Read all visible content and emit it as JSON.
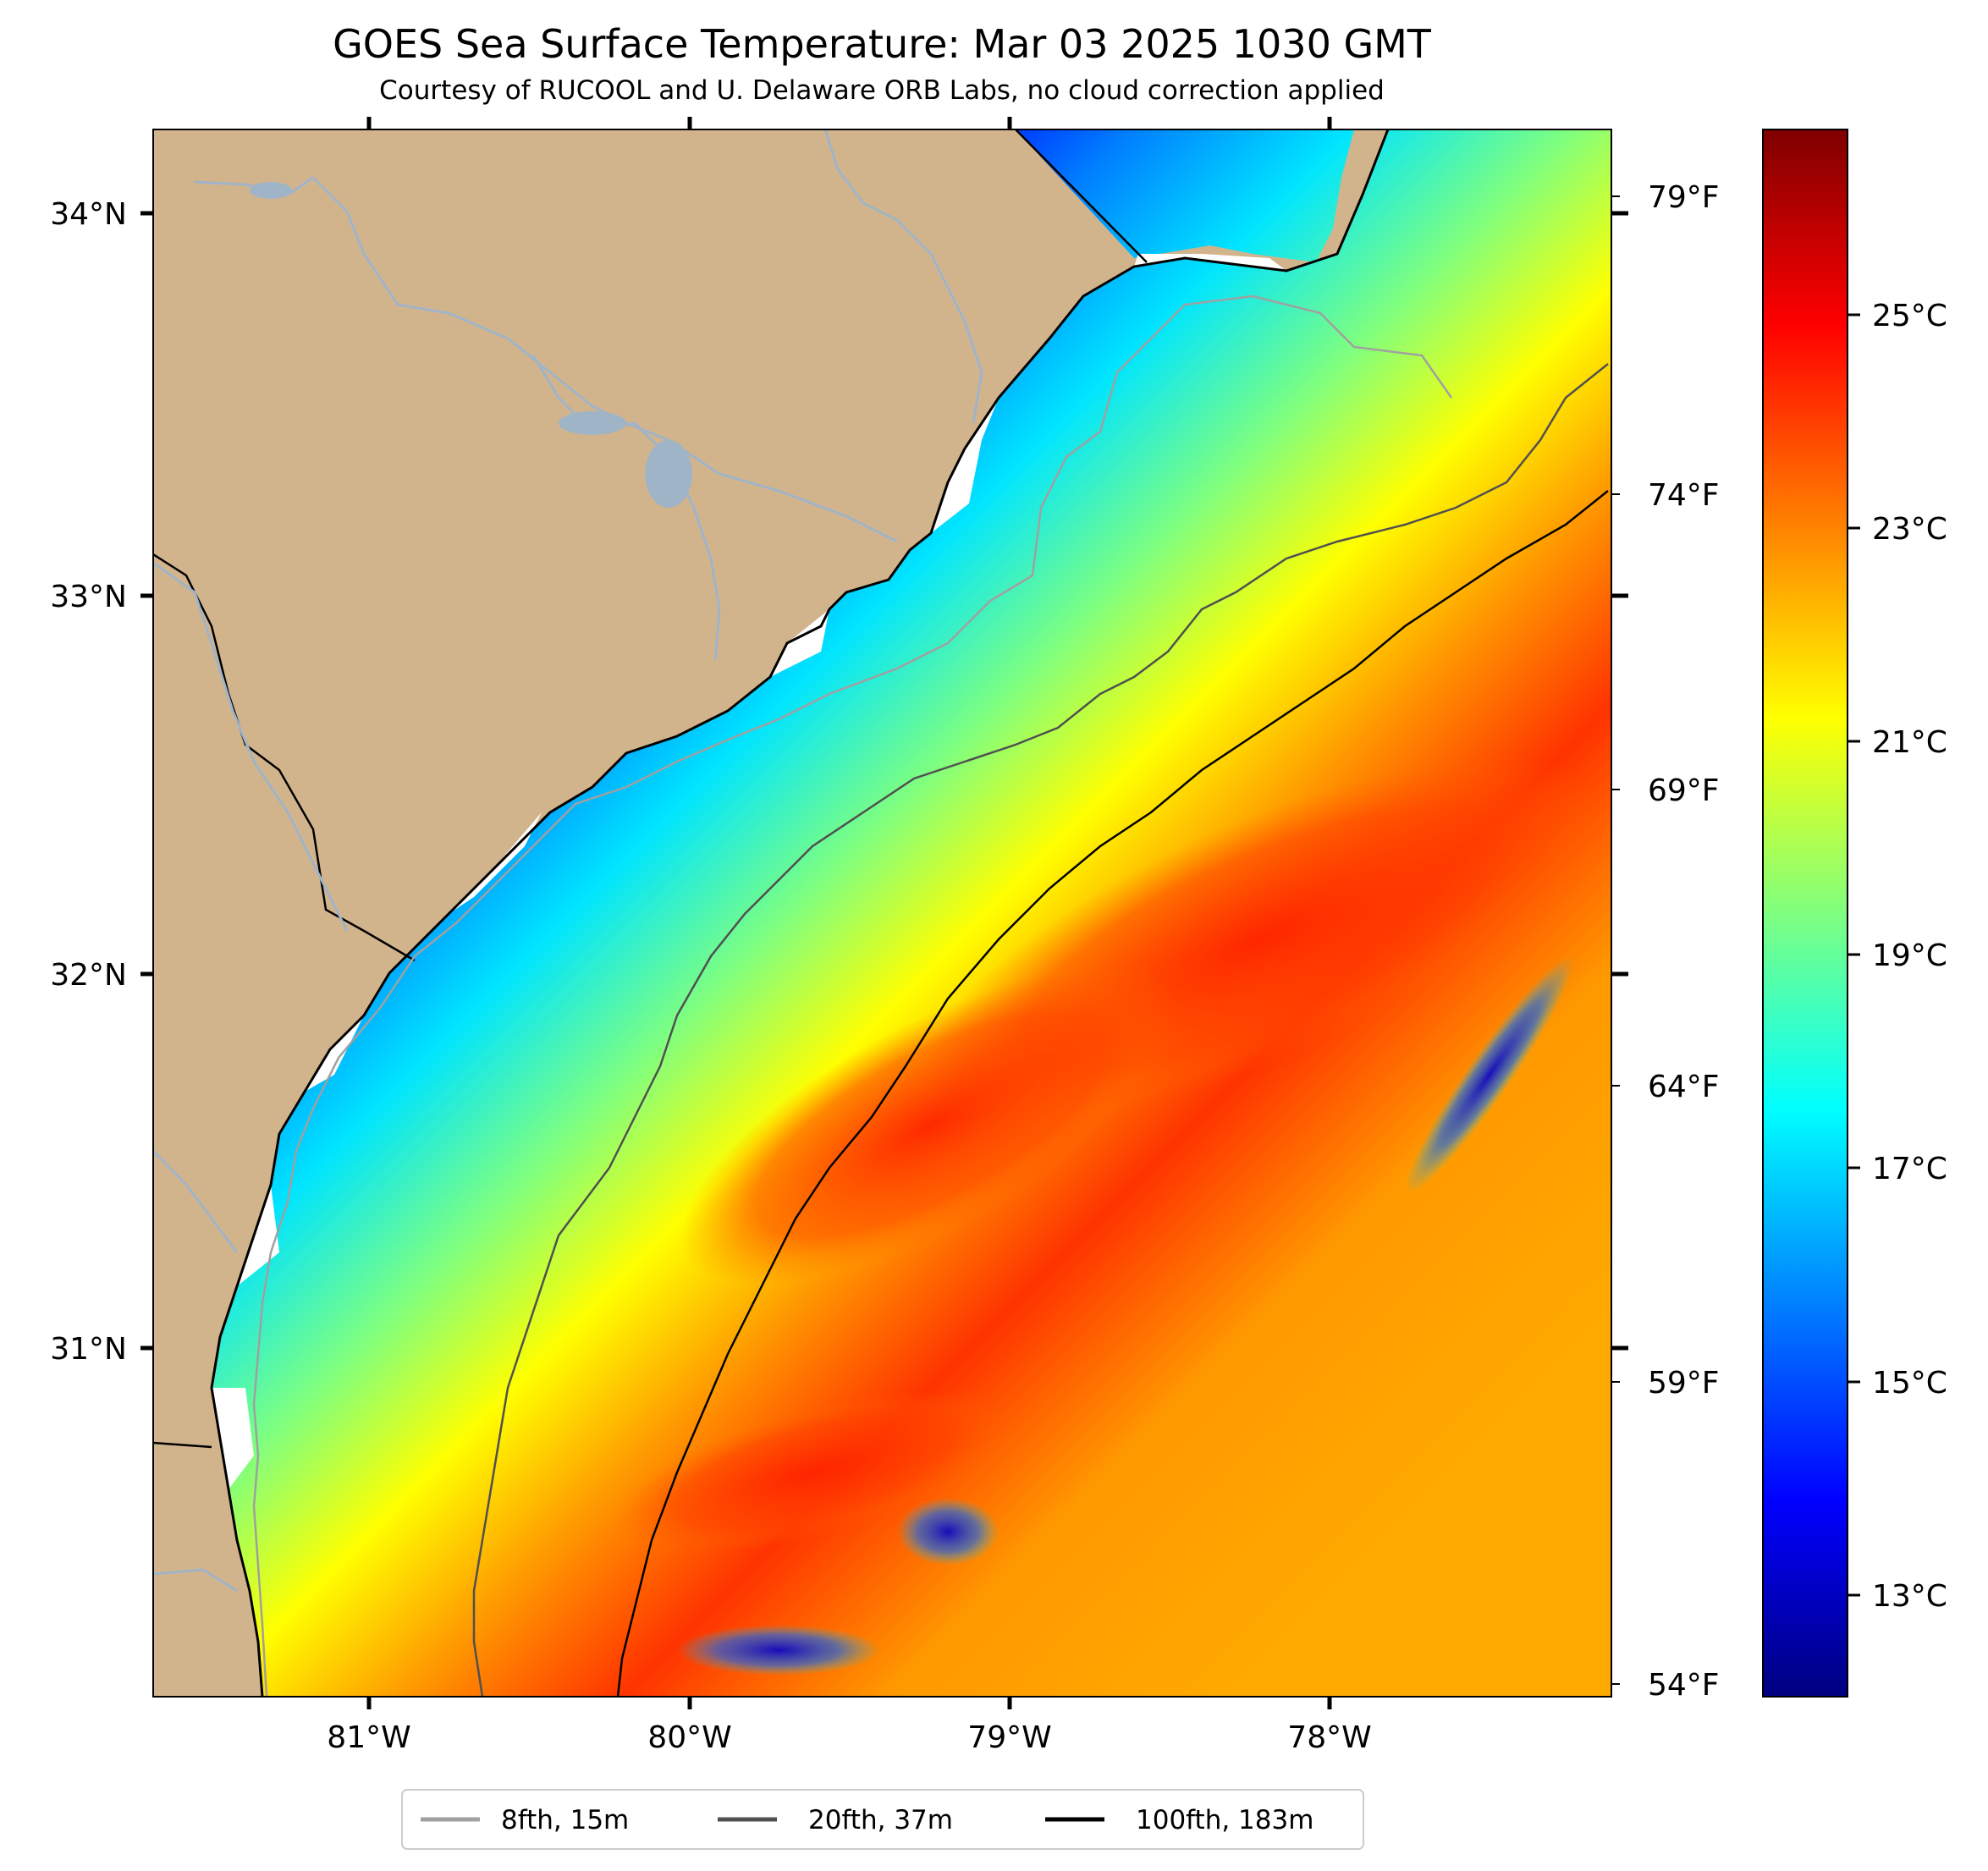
{
  "title": "GOES Sea Surface Temperature: Mar 03 2025 1030 GMT",
  "subtitle": "Courtesy of RUCOOL and U. Delaware ORB Labs, no cloud correction applied",
  "axes": {
    "lat_labels": [
      "34°N",
      "33°N",
      "32°N",
      "31°N"
    ],
    "lon_labels": [
      "81°W",
      "80°W",
      "79°W",
      "78°W"
    ],
    "fahrenheit_labels": [
      "79°F",
      "74°F",
      "69°F",
      "64°F",
      "59°F",
      "54°F"
    ]
  },
  "colorbar": {
    "labels": [
      "25°C",
      "23°C",
      "21°C",
      "19°C",
      "17°C",
      "15°C",
      "13°C"
    ],
    "colormap": "jet",
    "colors": [
      "#00007f",
      "#0000ff",
      "#007fff",
      "#00ffff",
      "#7fff7f",
      "#ffff00",
      "#ff7f00",
      "#ff0000",
      "#7f0000"
    ]
  },
  "legend": {
    "placement": "bottom-center",
    "items": [
      {
        "label": "8fth, 15m",
        "color": "#a0a0a0"
      },
      {
        "label": "20fth, 37m",
        "color": "#505050"
      },
      {
        "label": "100fth, 183m",
        "color": "#000000"
      }
    ]
  },
  "colors": {
    "land": "#d2b48c",
    "coastline": "#000000",
    "rivers": "#a0b4c8"
  }
}
